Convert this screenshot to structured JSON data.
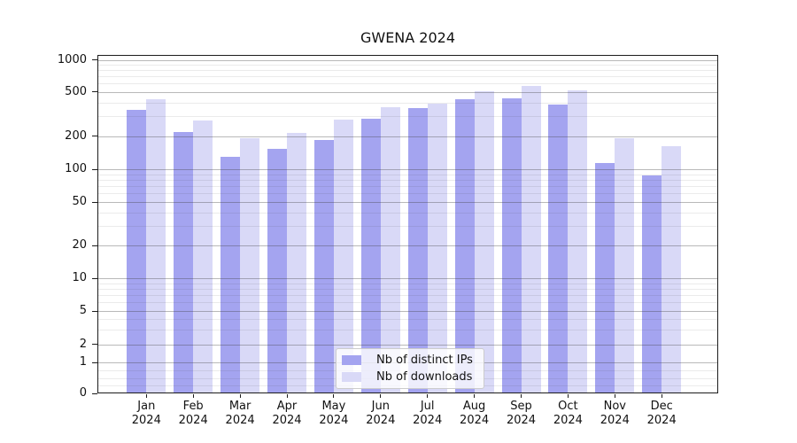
{
  "chart_data": {
    "type": "bar",
    "title": "GWENA 2024",
    "categories": [
      "Jan 2024",
      "Feb 2024",
      "Mar 2024",
      "Apr 2024",
      "May 2024",
      "Jun 2024",
      "Jul 2024",
      "Aug 2024",
      "Sep 2024",
      "Oct 2024",
      "Nov 2024",
      "Dec 2024"
    ],
    "x_tick_labels": [
      {
        "top": "Jan",
        "bottom": "2024"
      },
      {
        "top": "Feb",
        "bottom": "2024"
      },
      {
        "top": "Mar",
        "bottom": "2024"
      },
      {
        "top": "Apr",
        "bottom": "2024"
      },
      {
        "top": "May",
        "bottom": "2024"
      },
      {
        "top": "Jun",
        "bottom": "2024"
      },
      {
        "top": "Jul",
        "bottom": "2024"
      },
      {
        "top": "Aug",
        "bottom": "2024"
      },
      {
        "top": "Sep",
        "bottom": "2024"
      },
      {
        "top": "Oct",
        "bottom": "2024"
      },
      {
        "top": "Nov",
        "bottom": "2024"
      },
      {
        "top": "Dec",
        "bottom": "2024"
      }
    ],
    "series": [
      {
        "name": "Nb of distinct IPs",
        "color": "#a4a4f0",
        "values": [
          345,
          218,
          130,
          154,
          185,
          288,
          354,
          429,
          437,
          386,
          113,
          88
        ]
      },
      {
        "name": "Nb of downloads",
        "color": "#d9d9f7",
        "values": [
          425,
          277,
          191,
          214,
          279,
          362,
          393,
          504,
          571,
          511,
          191,
          161
        ]
      }
    ],
    "yaxis": {
      "scale": "symlog",
      "ylim": [
        0,
        1000
      ],
      "tick_labels": [
        "1000",
        "500",
        "200",
        "100",
        "50",
        "20",
        "10",
        "5",
        "2",
        "1",
        "0"
      ]
    },
    "grid": "both",
    "legend_position": "lower center"
  },
  "legend": {
    "items": [
      {
        "label": "Nb of distinct IPs",
        "color": "#a4a4f0"
      },
      {
        "label": "Nb of downloads",
        "color": "#d9d9f7"
      }
    ]
  }
}
